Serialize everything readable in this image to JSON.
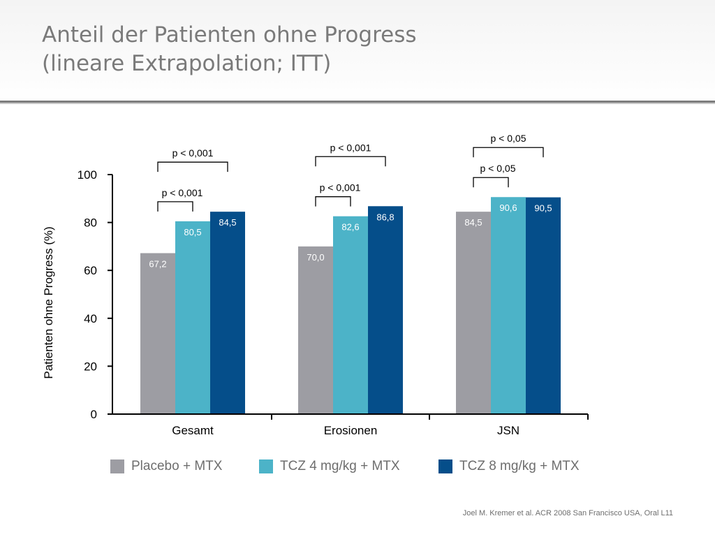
{
  "title_line1": "Anteil der Patienten ohne Progress",
  "title_line2": "(lineare Extrapolation; ITT)",
  "source": "Joel M. Kremer et al. ACR 2008 San Francisco USA, Oral L11",
  "colors": {
    "placebo": "#9d9da3",
    "tcz4": "#4cb3c8",
    "tcz8": "#054e8a",
    "title": "#7a7a7a",
    "axis": "#000000"
  },
  "chart_data": {
    "type": "bar",
    "title": "",
    "xlabel": "",
    "ylabel": "Patienten ohne Progress (%)",
    "ylim": [
      0,
      100
    ],
    "yticks": [
      "0",
      "20",
      "40",
      "60",
      "80",
      "100"
    ],
    "categories": [
      "Gesamt",
      "Erosionen",
      "JSN"
    ],
    "legend_position": "bottom",
    "grid": false,
    "series": [
      {
        "name": "Placebo + MTX",
        "values": [
          67.2,
          70.0,
          84.5
        ],
        "labels": [
          "67,2",
          "70,0",
          "84,5"
        ]
      },
      {
        "name": "TCZ 4 mg/kg + MTX",
        "values": [
          80.5,
          82.6,
          90.6
        ],
        "labels": [
          "80,5",
          "82,6",
          "90,6"
        ]
      },
      {
        "name": "TCZ 8 mg/kg + MTX",
        "values": [
          84.5,
          86.8,
          90.5
        ],
        "labels": [
          "84,5",
          "86,8",
          "90,5"
        ]
      }
    ],
    "annotations": [
      {
        "category": 0,
        "from_series": 0,
        "to_series": 2,
        "text": "p < 0,001"
      },
      {
        "category": 0,
        "from_series": 0,
        "to_series": 1,
        "text": "p < 0,001"
      },
      {
        "category": 1,
        "from_series": 0,
        "to_series": 2,
        "text": "p < 0,001"
      },
      {
        "category": 1,
        "from_series": 0,
        "to_series": 1,
        "text": "p < 0,001"
      },
      {
        "category": 2,
        "from_series": 0,
        "to_series": 2,
        "text": "p < 0,05"
      },
      {
        "category": 2,
        "from_series": 0,
        "to_series": 1,
        "text": "p < 0,05"
      }
    ]
  }
}
